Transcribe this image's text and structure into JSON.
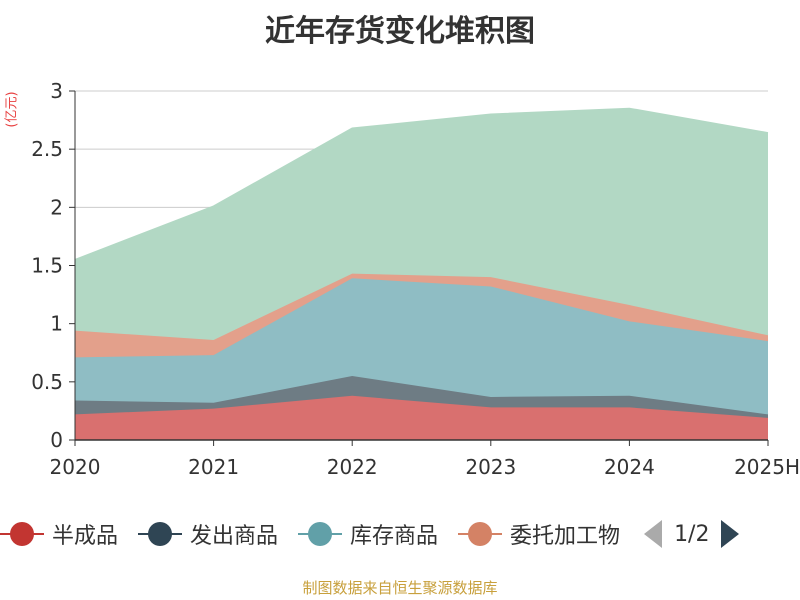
{
  "title": "近年存货变化堆积图",
  "unit_label": "(亿元)",
  "footer": "制图数据来自恒生聚源数据库",
  "legend": {
    "items": [
      {
        "label": "半成品",
        "color": "#c23531"
      },
      {
        "label": "发出商品",
        "color": "#2f4554"
      },
      {
        "label": "库存商品",
        "color": "#61a0a8"
      },
      {
        "label": "委托加工物",
        "color": "#d48265"
      }
    ],
    "page": "1/2"
  },
  "chart_data": {
    "type": "area",
    "stacked": true,
    "categories": [
      "2020",
      "2021",
      "2022",
      "2023",
      "2024",
      "2025H"
    ],
    "ylim": [
      0,
      3
    ],
    "yticks": [
      "0",
      "0.5",
      "1",
      "1.5",
      "2",
      "2.5",
      "3"
    ],
    "grid": true,
    "series": [
      {
        "name": "半成品",
        "color": "#d9706f",
        "values": [
          0.22,
          0.27,
          0.38,
          0.28,
          0.28,
          0.19
        ]
      },
      {
        "name": "发出商品",
        "color": "#6e7c84",
        "values": [
          0.12,
          0.05,
          0.17,
          0.09,
          0.1,
          0.03
        ]
      },
      {
        "name": "库存商品",
        "color": "#8fbdc4",
        "values": [
          0.37,
          0.41,
          0.84,
          0.95,
          0.64,
          0.63
        ]
      },
      {
        "name": "委托加工物",
        "color": "#e3a08b",
        "values": [
          0.23,
          0.13,
          0.04,
          0.08,
          0.14,
          0.05
        ]
      },
      {
        "name": "",
        "color": "#b2d8c4",
        "values": [
          0.61,
          1.15,
          1.25,
          1.4,
          1.69,
          1.74
        ]
      }
    ]
  }
}
